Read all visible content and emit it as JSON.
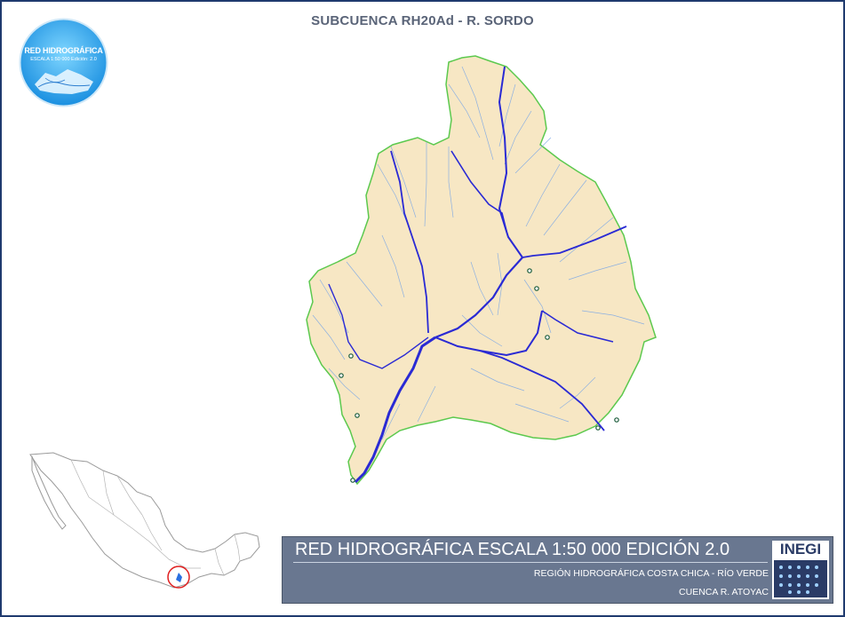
{
  "map": {
    "title": "SUBCUENCA RH20Ad - R. SORDO"
  },
  "logo": {
    "title": "RED HIDROGRÁFICA",
    "subtitle": "ESCALA 1:50 000 Edición: 2.0",
    "icon": "red-hidrografica-logo"
  },
  "banner": {
    "title": "RED HIDROGRÁFICA ESCALA 1:50 000 EDICIÓN 2.0",
    "region": "REGIÓN HIDROGRÁFICA COSTA CHICA - RÍO VERDE",
    "basin": "CUENCA R. ATOYAC",
    "org": "INEGI"
  },
  "colors": {
    "frame": "#1f3a6e",
    "basin_fill": "#f7e7c4",
    "basin_border": "#5cc94e",
    "stream_minor": "#7aa7e6",
    "stream_main": "#2a2ad4",
    "banner_bg": "#697790",
    "locator_circle": "#e02020"
  },
  "inset": {
    "icon": "mexico-locator-map"
  }
}
